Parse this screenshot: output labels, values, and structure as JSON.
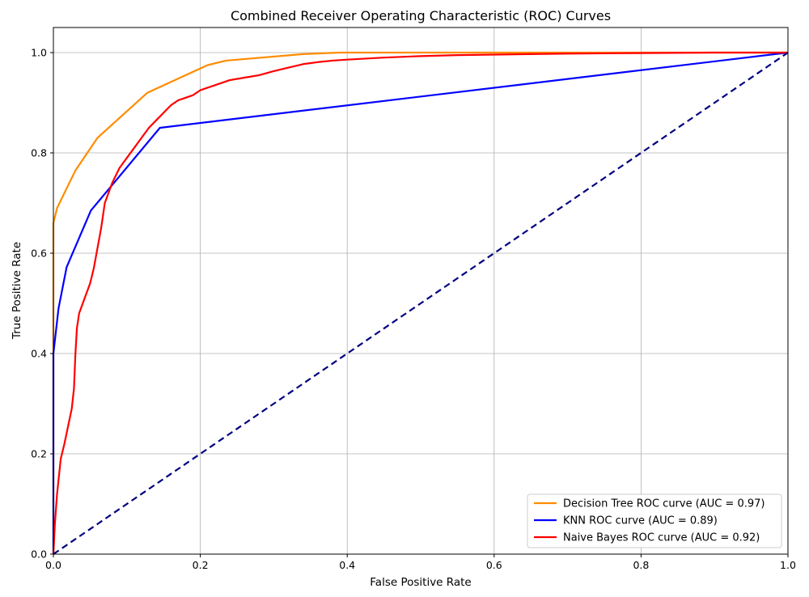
{
  "chart_data": {
    "type": "line",
    "title": "Combined Receiver Operating Characteristic (ROC) Curves",
    "xlabel": "False Positive Rate",
    "ylabel": "True Positive Rate",
    "xlim": [
      0.0,
      1.0
    ],
    "ylim": [
      0.0,
      1.05
    ],
    "xticks": [
      0.0,
      0.2,
      0.4,
      0.6,
      0.8,
      1.0
    ],
    "yticks": [
      0.0,
      0.2,
      0.4,
      0.6,
      0.8,
      1.0
    ],
    "xtick_labels": [
      "0.0",
      "0.2",
      "0.4",
      "0.6",
      "0.8",
      "1.0"
    ],
    "ytick_labels": [
      "0.0",
      "0.2",
      "0.4",
      "0.6",
      "0.8",
      "1.0"
    ],
    "grid": true,
    "legend_position": "lower-right",
    "series": [
      {
        "name": "Decision Tree ROC curve (AUC = 0.97)",
        "color": "#ff8c00",
        "style": "solid",
        "x": [
          0.0,
          0.0,
          0.005,
          0.03,
          0.06,
          0.128,
          0.21,
          0.235,
          0.34,
          0.39,
          0.5,
          0.7,
          1.0
        ],
        "y": [
          0.0,
          0.66,
          0.69,
          0.765,
          0.83,
          0.92,
          0.975,
          0.984,
          0.997,
          1.0,
          1.0,
          1.0,
          1.0
        ]
      },
      {
        "name": "KNN ROC curve (AUC = 0.89)",
        "color": "#0000ff",
        "style": "solid",
        "x": [
          0.0,
          0.0,
          0.007,
          0.018,
          0.051,
          0.145,
          1.0
        ],
        "y": [
          0.0,
          0.4,
          0.49,
          0.572,
          0.685,
          0.85,
          1.0
        ]
      },
      {
        "name": "Naive Bayes ROC curve (AUC = 0.92)",
        "color": "#ff0000",
        "style": "solid",
        "x": [
          0.0,
          0.002,
          0.005,
          0.01,
          0.015,
          0.02,
          0.025,
          0.028,
          0.03,
          0.032,
          0.035,
          0.04,
          0.045,
          0.05,
          0.055,
          0.06,
          0.065,
          0.07,
          0.075,
          0.08,
          0.09,
          0.1,
          0.11,
          0.12,
          0.13,
          0.14,
          0.15,
          0.16,
          0.17,
          0.18,
          0.19,
          0.2,
          0.22,
          0.24,
          0.26,
          0.28,
          0.3,
          0.32,
          0.34,
          0.36,
          0.38,
          0.4,
          0.45,
          0.5,
          0.55,
          0.6,
          0.7,
          0.8,
          0.9,
          1.0
        ],
        "y": [
          0.0,
          0.06,
          0.12,
          0.19,
          0.22,
          0.255,
          0.29,
          0.33,
          0.4,
          0.45,
          0.48,
          0.5,
          0.52,
          0.54,
          0.57,
          0.61,
          0.65,
          0.7,
          0.72,
          0.74,
          0.77,
          0.79,
          0.81,
          0.83,
          0.85,
          0.865,
          0.88,
          0.895,
          0.905,
          0.91,
          0.915,
          0.925,
          0.935,
          0.945,
          0.95,
          0.955,
          0.963,
          0.97,
          0.977,
          0.981,
          0.984,
          0.986,
          0.99,
          0.993,
          0.995,
          0.996,
          0.998,
          0.999,
          1.0,
          1.0
        ]
      },
      {
        "color": "#000080",
        "style": "dashed",
        "x": [
          0.0,
          1.0
        ],
        "y": [
          0.0,
          1.0
        ]
      }
    ]
  }
}
